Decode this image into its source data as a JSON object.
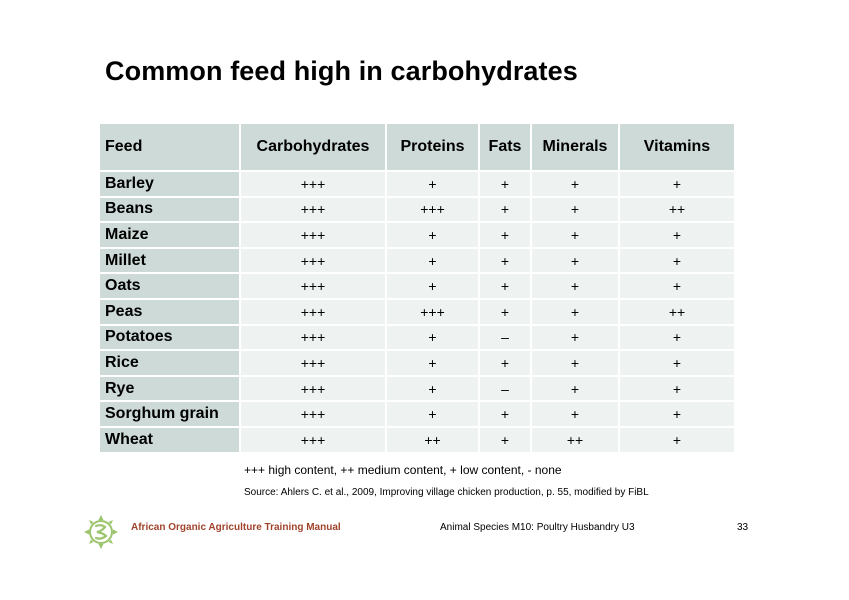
{
  "title": "Common feed high in carbohydrates",
  "table": {
    "headers": [
      "Feed",
      "Carbohydrates",
      "Proteins",
      "Fats",
      "Minerals",
      "Vitamins"
    ],
    "rows": [
      [
        "Barley",
        "+++",
        "+",
        "+",
        "+",
        "+"
      ],
      [
        "Beans",
        "+++",
        "+++",
        "+",
        "+",
        "++"
      ],
      [
        "Maize",
        "+++",
        "+",
        "+",
        "+",
        "+"
      ],
      [
        "Millet",
        "+++",
        "+",
        "+",
        "+",
        "+"
      ],
      [
        "Oats",
        "+++",
        "+",
        "+",
        "+",
        "+"
      ],
      [
        "Peas",
        "+++",
        "+++",
        "+",
        "+",
        "++"
      ],
      [
        "Potatoes",
        "+++",
        "+",
        "–",
        "+",
        "+"
      ],
      [
        "Rice",
        "+++",
        "+",
        "+",
        "+",
        "+"
      ],
      [
        "Rye",
        "+++",
        "+",
        "–",
        "+",
        "+"
      ],
      [
        "Sorghum grain",
        "+++",
        "+",
        "+",
        "+",
        "+"
      ],
      [
        "Wheat",
        "+++",
        "++",
        "+",
        "++",
        "+"
      ]
    ]
  },
  "legend": "+++ high content, ++ medium content, + low content, - none",
  "source": "Source: Ahlers C. et al., 2009, Improving village chicken production, p. 55, modified by FiBL",
  "footer": {
    "logo_icon": "sunflower-logo-icon",
    "manual": "African Organic Agriculture Training Manual",
    "module": "Animal Species M10: Poultry Husbandry U3",
    "page": "33"
  },
  "colors": {
    "header_bg": "#cddad7",
    "cell_bg": "#eef3f1",
    "manual_text": "#a0432b",
    "logo": "#9bc46c"
  }
}
